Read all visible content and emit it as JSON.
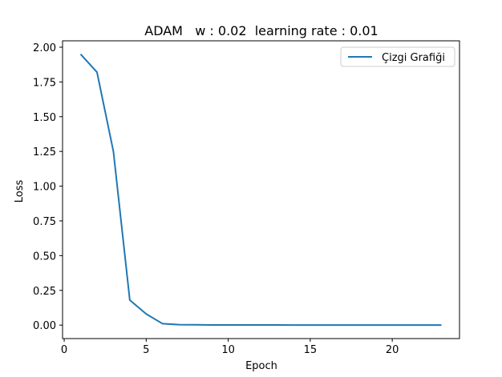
{
  "chart_data": {
    "type": "line",
    "title": "ADAM   w : 0.02  learning rate : 0.01",
    "xlabel": "Epoch",
    "ylabel": "Loss",
    "xlim": [
      0,
      24
    ],
    "ylim": [
      0,
      2.0
    ],
    "x_ticks": [
      0,
      5,
      10,
      15,
      20
    ],
    "y_ticks": [
      0.0,
      0.25,
      0.5,
      0.75,
      1.0,
      1.25,
      1.5,
      1.75,
      2.0
    ],
    "grid": false,
    "legend_position": "top-right",
    "series": [
      {
        "name": "Çizgi Grafiği",
        "color": "#1f77b4",
        "x": [
          1,
          2,
          3,
          4,
          5,
          6,
          7,
          8,
          9,
          10,
          11,
          12,
          13,
          14,
          15,
          16,
          17,
          18,
          19,
          20,
          21,
          22,
          23
        ],
        "y": [
          1.95,
          1.82,
          1.25,
          0.18,
          0.08,
          0.01,
          0.003,
          0.002,
          0.001,
          0.001,
          0.001,
          0.0008,
          0.0006,
          0.0005,
          0.0004,
          0.0004,
          0.0003,
          0.0003,
          0.0002,
          0.0002,
          0.0002,
          0.0001,
          0.0001
        ]
      }
    ]
  }
}
